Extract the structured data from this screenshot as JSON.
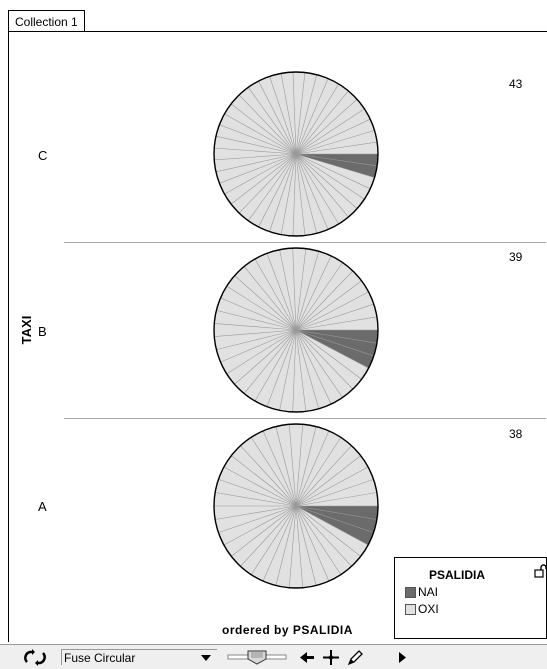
{
  "window": {
    "tab_label": "Collection 1"
  },
  "axis": {
    "y_title": "TAXI"
  },
  "caption": "ordered by PSALIDIA",
  "legend": {
    "title": "PSALIDIA",
    "items": [
      {
        "label": "NAI",
        "color": "#6b6b6b"
      },
      {
        "label": "OXI",
        "color": "#e1e1e1"
      }
    ]
  },
  "toolbar": {
    "plot_type": "Fuse Circular"
  },
  "chart_data": {
    "type": "pie",
    "facet_variable": "TAXI",
    "legend_variable": "PSALIDIA",
    "categories": [
      "NAI",
      "OXI"
    ],
    "colors": {
      "NAI": "#6b6b6b",
      "OXI": "#e1e1e1"
    },
    "panels": [
      {
        "label": "C",
        "count": "43",
        "values": [
          2,
          41
        ]
      },
      {
        "label": "B",
        "count": "39",
        "values": [
          3,
          36
        ]
      },
      {
        "label": "A",
        "count": "38",
        "values": [
          3,
          35
        ]
      }
    ]
  }
}
